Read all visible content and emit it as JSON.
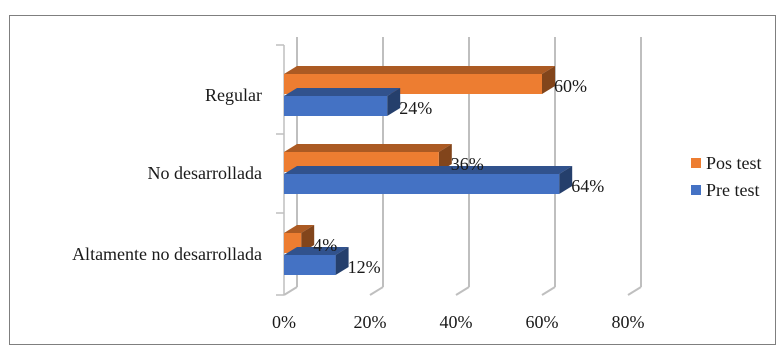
{
  "chart_data": {
    "type": "bar",
    "orientation": "horizontal",
    "style": "3d-clustered",
    "categories": [
      "Regular",
      "No desarrollada",
      "Altamente no desarrollada"
    ],
    "series": [
      {
        "name": "Pos test",
        "values": [
          60,
          36,
          4
        ],
        "labels": [
          "60%",
          "36%",
          "4%"
        ],
        "color": "#ED7D31"
      },
      {
        "name": "Pre test",
        "values": [
          24,
          64,
          12
        ],
        "labels": [
          "24%",
          "64%",
          "12%"
        ],
        "color": "#4472C4"
      }
    ],
    "xlim": [
      0,
      80
    ],
    "x_ticks": [
      0,
      20,
      40,
      60,
      80
    ],
    "x_tick_labels": [
      "0%",
      "20%",
      "40%",
      "60%",
      "80%"
    ],
    "grid": true,
    "legend_position": "right",
    "title": "",
    "xlabel": "",
    "ylabel": ""
  }
}
